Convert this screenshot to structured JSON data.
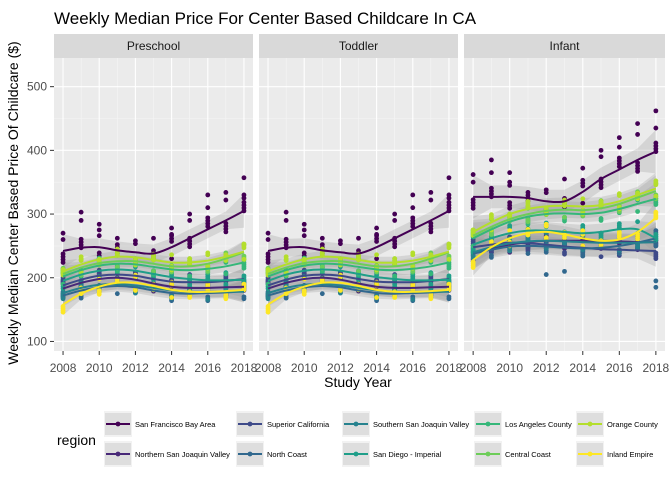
{
  "chart_data": {
    "type": "scatter",
    "title": "Weekly Median Price For Center Based Childcare In CA",
    "xlabel": "Study Year",
    "ylabel": "Weekly Median Center Based Price Of Childcare ($)",
    "xlim": [
      2007.5,
      2018.5
    ],
    "ylim": [
      85,
      545
    ],
    "x_ticks": [
      2008,
      2010,
      2012,
      2014,
      2016,
      2018
    ],
    "y_ticks": [
      100,
      200,
      300,
      400,
      500
    ],
    "grid": true,
    "smoothing": "loess trend lines with grey confidence bands",
    "panels": [
      "Preschool",
      "Toddler",
      "Infant"
    ],
    "legend": {
      "title": "region",
      "position": "bottom"
    },
    "x": [
      2008,
      2009,
      2010,
      2011,
      2012,
      2013,
      2014,
      2015,
      2016,
      2017,
      2018
    ],
    "series": [
      {
        "name": "San Francisco Bay Area",
        "color": "#440154",
        "values": {
          "Preschool": [
            242,
            247,
            248,
            243,
            240,
            238,
            248,
            262,
            276,
            290,
            305
          ],
          "Toddler": [
            242,
            247,
            248,
            243,
            240,
            238,
            248,
            262,
            276,
            290,
            305
          ],
          "Infant": [
            327,
            327,
            327,
            325,
            320,
            320,
            335,
            355,
            370,
            385,
            398
          ]
        }
      },
      {
        "name": "Northern San Joaquin Valley",
        "color": "#482878",
        "values": {
          "Preschool": [
            183,
            192,
            198,
            200,
            197,
            191,
            186,
            184,
            184,
            185,
            186
          ],
          "Toddler": [
            183,
            192,
            198,
            200,
            197,
            191,
            186,
            184,
            184,
            185,
            186
          ],
          "Infant": [
            238,
            246,
            252,
            256,
            258,
            258,
            258,
            258,
            257,
            256,
            256
          ]
        }
      },
      {
        "name": "Superior California",
        "color": "#3E4A89",
        "values": {
          "Preschool": [
            188,
            197,
            203,
            205,
            203,
            198,
            194,
            193,
            193,
            195,
            198
          ],
          "Toddler": [
            188,
            197,
            203,
            205,
            203,
            198,
            194,
            193,
            193,
            195,
            198
          ],
          "Infant": [
            248,
            252,
            255,
            254,
            252,
            249,
            247,
            245,
            244,
            243,
            242
          ]
        }
      },
      {
        "name": "North Coast",
        "color": "#31688E",
        "values": {
          "Preschool": [
            172,
            180,
            185,
            187,
            185,
            180,
            176,
            175,
            176,
            177,
            179
          ],
          "Toddler": [
            172,
            180,
            185,
            187,
            185,
            180,
            176,
            175,
            176,
            177,
            179
          ],
          "Infant": [
            238,
            244,
            249,
            250,
            249,
            247,
            246,
            247,
            250,
            255,
            262
          ]
        }
      },
      {
        "name": "Southern San Joaquin Valley",
        "color": "#26828E",
        "values": {
          "Preschool": [
            176,
            184,
            189,
            190,
            188,
            184,
            180,
            178,
            178,
            178,
            178
          ],
          "Toddler": [
            176,
            184,
            189,
            190,
            188,
            184,
            180,
            178,
            178,
            178,
            178
          ],
          "Infant": [
            240,
            248,
            254,
            257,
            258,
            257,
            256,
            255,
            255,
            255,
            256
          ]
        }
      },
      {
        "name": "San Diego - Imperial",
        "color": "#1F9E89",
        "values": {
          "Preschool": [
            195,
            205,
            211,
            213,
            211,
            206,
            201,
            198,
            196,
            196,
            197
          ],
          "Toddler": [
            195,
            205,
            211,
            213,
            211,
            206,
            201,
            198,
            196,
            196,
            197
          ],
          "Infant": [
            252,
            262,
            270,
            274,
            274,
            272,
            270,
            272,
            276,
            276,
            262
          ]
        }
      },
      {
        "name": "Los Angeles County",
        "color": "#35B779",
        "values": {
          "Preschool": [
            202,
            212,
            219,
            222,
            221,
            217,
            213,
            212,
            214,
            218,
            224
          ],
          "Toddler": [
            202,
            212,
            219,
            222,
            221,
            217,
            213,
            212,
            214,
            218,
            224
          ],
          "Infant": [
            262,
            276,
            288,
            296,
            300,
            301,
            300,
            302,
            308,
            316,
            324
          ]
        }
      },
      {
        "name": "Central Coast",
        "color": "#6DCD59",
        "values": {
          "Preschool": [
            206,
            216,
            223,
            226,
            226,
            222,
            218,
            218,
            222,
            230,
            240
          ],
          "Toddler": [
            206,
            216,
            223,
            226,
            226,
            222,
            218,
            218,
            222,
            230,
            240
          ],
          "Infant": [
            266,
            280,
            292,
            300,
            305,
            307,
            306,
            309,
            316,
            326,
            336
          ]
        }
      },
      {
        "name": "Orange County",
        "color": "#B4DE2C",
        "values": {
          "Preschool": [
            210,
            221,
            229,
            233,
            232,
            228,
            224,
            224,
            227,
            233,
            241
          ],
          "Toddler": [
            210,
            221,
            229,
            233,
            232,
            228,
            224,
            224,
            227,
            233,
            241
          ],
          "Infant": [
            272,
            287,
            300,
            308,
            312,
            313,
            312,
            314,
            320,
            330,
            340
          ]
        }
      },
      {
        "name": "Inland Empire",
        "color": "#FDE725",
        "values": {
          "Preschool": [
            158,
            175,
            186,
            192,
            192,
            187,
            181,
            178,
            178,
            179,
            181
          ],
          "Toddler": [
            158,
            175,
            186,
            192,
            192,
            187,
            181,
            178,
            178,
            179,
            181
          ],
          "Infant": [
            228,
            248,
            262,
            270,
            272,
            268,
            262,
            258,
            260,
            272,
            294
          ]
        }
      }
    ],
    "outliers": {
      "Preschool": [
        [
          2008,
          270
        ],
        [
          2008,
          260
        ],
        [
          2009,
          303
        ],
        [
          2009,
          290
        ],
        [
          2010,
          284
        ],
        [
          2010,
          275
        ],
        [
          2011,
          262
        ],
        [
          2013,
          262
        ],
        [
          2014,
          278
        ],
        [
          2014,
          268
        ],
        [
          2015,
          300
        ],
        [
          2015,
          290
        ],
        [
          2016,
          330
        ],
        [
          2016,
          310
        ],
        [
          2017,
          334
        ],
        [
          2017,
          322
        ],
        [
          2018,
          357
        ],
        [
          2018,
          330
        ],
        [
          2018,
          325
        ]
      ],
      "Toddler": [
        [
          2008,
          270
        ],
        [
          2008,
          260
        ],
        [
          2009,
          303
        ],
        [
          2009,
          290
        ],
        [
          2010,
          284
        ],
        [
          2010,
          275
        ],
        [
          2011,
          262
        ],
        [
          2013,
          262
        ],
        [
          2014,
          278
        ],
        [
          2014,
          268
        ],
        [
          2015,
          300
        ],
        [
          2015,
          290
        ],
        [
          2016,
          330
        ],
        [
          2016,
          310
        ],
        [
          2017,
          334
        ],
        [
          2017,
          322
        ],
        [
          2018,
          357
        ],
        [
          2018,
          330
        ],
        [
          2018,
          325
        ]
      ],
      "Infant": [
        [
          2008,
          362
        ],
        [
          2008,
          350
        ],
        [
          2009,
          385
        ],
        [
          2009,
          365
        ],
        [
          2010,
          365
        ],
        [
          2010,
          350
        ],
        [
          2013,
          355
        ],
        [
          2014,
          372
        ],
        [
          2015,
          400
        ],
        [
          2015,
          390
        ],
        [
          2016,
          420
        ],
        [
          2016,
          405
        ],
        [
          2017,
          442
        ],
        [
          2017,
          425
        ],
        [
          2018,
          462
        ],
        [
          2018,
          435
        ],
        [
          2018,
          185
        ],
        [
          2018,
          195
        ],
        [
          2013,
          210
        ],
        [
          2012,
          205
        ]
      ]
    }
  }
}
